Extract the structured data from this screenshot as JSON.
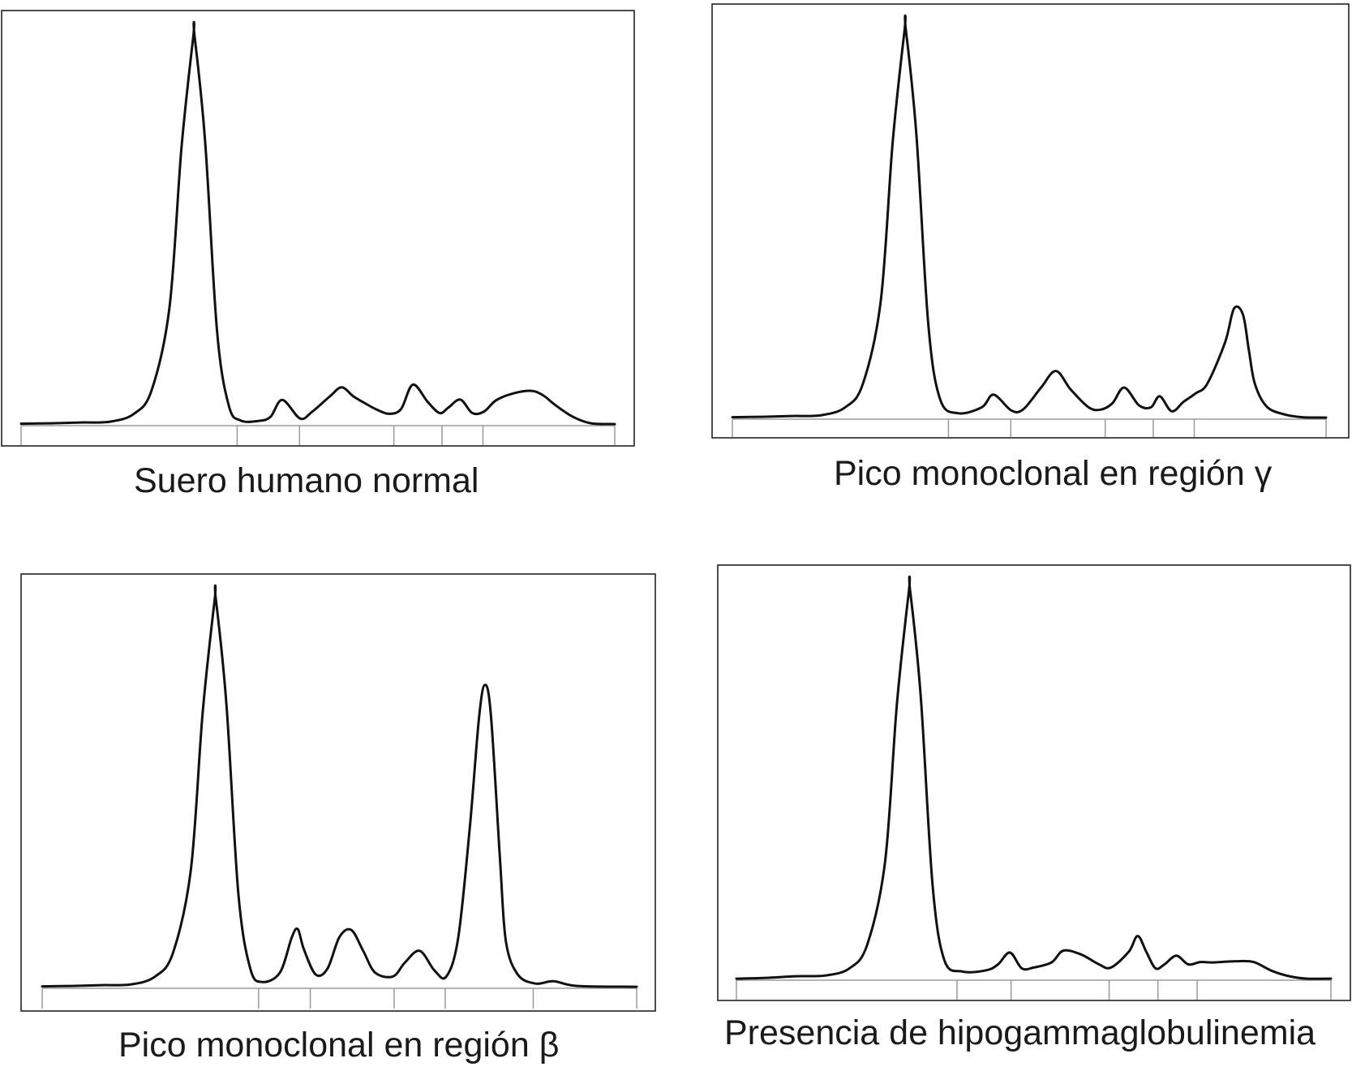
{
  "chart_data": [
    {
      "type": "line",
      "title": "Suero humano normal",
      "x_range": [
        0,
        1
      ],
      "y_range": [
        0,
        1
      ],
      "grid": false,
      "legend": "none",
      "line_color": "#111111",
      "baseline_color": "#9a9a9a",
      "segment_boundaries": [
        0,
        0.364,
        0.469,
        0.628,
        0.709,
        0.778,
        1
      ],
      "x": [
        0,
        0.05,
        0.1,
        0.15,
        0.19,
        0.22,
        0.25,
        0.27,
        0.29,
        0.292,
        0.31,
        0.33,
        0.35,
        0.37,
        0.4,
        0.42,
        0.44,
        0.47,
        0.49,
        0.52,
        0.54,
        0.56,
        0.58,
        0.6,
        0.62,
        0.64,
        0.66,
        0.685,
        0.705,
        0.72,
        0.74,
        0.76,
        0.78,
        0.8,
        0.83,
        0.86,
        0.88,
        0.9,
        0.93,
        0.96,
        1.0
      ],
      "values": [
        0.005,
        0.006,
        0.008,
        0.01,
        0.03,
        0.09,
        0.3,
        0.7,
        0.985,
        0.99,
        0.72,
        0.24,
        0.05,
        0.013,
        0.012,
        0.022,
        0.065,
        0.018,
        0.035,
        0.074,
        0.097,
        0.074,
        0.056,
        0.04,
        0.03,
        0.042,
        0.104,
        0.06,
        0.032,
        0.046,
        0.066,
        0.032,
        0.036,
        0.064,
        0.082,
        0.088,
        0.076,
        0.052,
        0.022,
        0.006,
        0.004
      ]
    },
    {
      "type": "line",
      "title": "Pico monoclonal en región γ",
      "x_range": [
        0,
        1
      ],
      "y_range": [
        0,
        1
      ],
      "grid": false,
      "legend": "none",
      "line_color": "#111111",
      "baseline_color": "#9a9a9a",
      "segment_boundaries": [
        0,
        0.364,
        0.469,
        0.628,
        0.709,
        0.778,
        1
      ],
      "x": [
        0,
        0.05,
        0.1,
        0.15,
        0.19,
        0.22,
        0.25,
        0.27,
        0.29,
        0.292,
        0.31,
        0.33,
        0.35,
        0.38,
        0.42,
        0.44,
        0.47,
        0.49,
        0.52,
        0.545,
        0.57,
        0.6,
        0.62,
        0.64,
        0.66,
        0.685,
        0.705,
        0.72,
        0.74,
        0.76,
        0.78,
        0.8,
        0.83,
        0.845,
        0.86,
        0.87,
        0.88,
        0.9,
        0.93,
        0.96,
        1.0
      ],
      "values": [
        0.005,
        0.006,
        0.008,
        0.01,
        0.03,
        0.09,
        0.3,
        0.7,
        0.985,
        0.99,
        0.72,
        0.24,
        0.05,
        0.015,
        0.03,
        0.062,
        0.022,
        0.025,
        0.08,
        0.122,
        0.075,
        0.03,
        0.024,
        0.04,
        0.08,
        0.035,
        0.03,
        0.058,
        0.02,
        0.044,
        0.065,
        0.09,
        0.195,
        0.28,
        0.265,
        0.175,
        0.09,
        0.032,
        0.012,
        0.005,
        0.004
      ]
    },
    {
      "type": "line",
      "title": "Pico monoclonal en región β",
      "x_range": [
        0,
        1
      ],
      "y_range": [
        0,
        1
      ],
      "grid": false,
      "legend": "none",
      "line_color": "#111111",
      "baseline_color": "#9a9a9a",
      "segment_boundaries": [
        0,
        0.364,
        0.451,
        0.592,
        0.678,
        0.826,
        1
      ],
      "x": [
        0,
        0.05,
        0.1,
        0.15,
        0.19,
        0.22,
        0.25,
        0.27,
        0.29,
        0.292,
        0.31,
        0.33,
        0.35,
        0.37,
        0.4,
        0.42,
        0.43,
        0.44,
        0.46,
        0.48,
        0.5,
        0.52,
        0.54,
        0.56,
        0.59,
        0.61,
        0.635,
        0.66,
        0.68,
        0.7,
        0.72,
        0.735,
        0.745,
        0.755,
        0.77,
        0.78,
        0.8,
        0.83,
        0.86,
        0.9,
        1.0
      ],
      "values": [
        0.005,
        0.006,
        0.008,
        0.01,
        0.03,
        0.09,
        0.3,
        0.7,
        0.985,
        0.99,
        0.72,
        0.24,
        0.05,
        0.016,
        0.04,
        0.13,
        0.15,
        0.1,
        0.035,
        0.05,
        0.13,
        0.148,
        0.095,
        0.04,
        0.03,
        0.065,
        0.095,
        0.045,
        0.03,
        0.13,
        0.42,
        0.69,
        0.77,
        0.69,
        0.33,
        0.12,
        0.035,
        0.012,
        0.018,
        0.006,
        0.004
      ]
    },
    {
      "type": "line",
      "title": "Presencia de hipogammaglobulinemia",
      "x_range": [
        0,
        1
      ],
      "y_range": [
        0,
        1
      ],
      "grid": false,
      "legend": "none",
      "line_color": "#111111",
      "baseline_color": "#9a9a9a",
      "segment_boundaries": [
        0,
        0.371,
        0.462,
        0.627,
        0.709,
        0.775,
        1
      ],
      "x": [
        0,
        0.05,
        0.1,
        0.15,
        0.19,
        0.22,
        0.25,
        0.27,
        0.29,
        0.292,
        0.31,
        0.33,
        0.35,
        0.38,
        0.42,
        0.44,
        0.46,
        0.48,
        0.5,
        0.53,
        0.55,
        0.58,
        0.61,
        0.63,
        0.66,
        0.675,
        0.69,
        0.705,
        0.72,
        0.74,
        0.76,
        0.78,
        0.8,
        0.84,
        0.87,
        0.9,
        0.93,
        0.96,
        1.0
      ],
      "values": [
        0.004,
        0.006,
        0.01,
        0.012,
        0.03,
        0.09,
        0.3,
        0.7,
        0.985,
        0.99,
        0.72,
        0.24,
        0.05,
        0.022,
        0.025,
        0.04,
        0.07,
        0.03,
        0.032,
        0.045,
        0.075,
        0.065,
        0.04,
        0.032,
        0.072,
        0.112,
        0.07,
        0.03,
        0.04,
        0.062,
        0.04,
        0.046,
        0.045,
        0.048,
        0.046,
        0.024,
        0.01,
        0.004,
        0.004
      ]
    }
  ]
}
